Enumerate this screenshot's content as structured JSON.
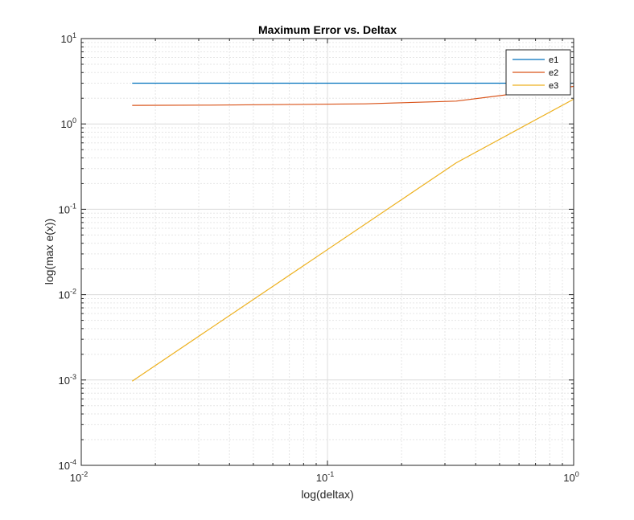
{
  "chart_data": {
    "type": "line",
    "title": "Maximum Error vs. Deltax",
    "xlabel": "log(deltax)",
    "ylabel": "log(max e(x))",
    "xscale": "log",
    "yscale": "log",
    "xlim": [
      0.01,
      1
    ],
    "ylim": [
      0.0001,
      10
    ],
    "grid": true,
    "minor_grid": true,
    "legend_position": "top-right",
    "x_ticks": [
      {
        "base": "10",
        "exp": "-2",
        "value": 0.01
      },
      {
        "base": "10",
        "exp": "-1",
        "value": 0.1
      },
      {
        "base": "10",
        "exp": "0",
        "value": 1
      }
    ],
    "y_ticks": [
      {
        "base": "10",
        "exp": "-4",
        "value": 0.0001
      },
      {
        "base": "10",
        "exp": "-3",
        "value": 0.001
      },
      {
        "base": "10",
        "exp": "-2",
        "value": 0.01
      },
      {
        "base": "10",
        "exp": "-1",
        "value": 0.1
      },
      {
        "base": "10",
        "exp": "0",
        "value": 1
      },
      {
        "base": "10",
        "exp": "1",
        "value": 10
      }
    ],
    "series": [
      {
        "name": "e1",
        "color": "#0072BD",
        "x": [
          0.0161,
          0.0333,
          0.1429,
          0.3333,
          1
        ],
        "y": [
          3.0,
          3.0,
          3.0,
          3.0,
          3.0
        ]
      },
      {
        "name": "e2",
        "color": "#D95319",
        "x": [
          0.0161,
          0.0333,
          0.1429,
          0.3333,
          1
        ],
        "y": [
          1.65,
          1.66,
          1.72,
          1.85,
          2.75
        ]
      },
      {
        "name": "e3",
        "color": "#EDB120",
        "x": [
          0.0161,
          0.3333,
          1
        ],
        "y": [
          0.00097,
          0.35,
          1.95
        ]
      }
    ]
  }
}
